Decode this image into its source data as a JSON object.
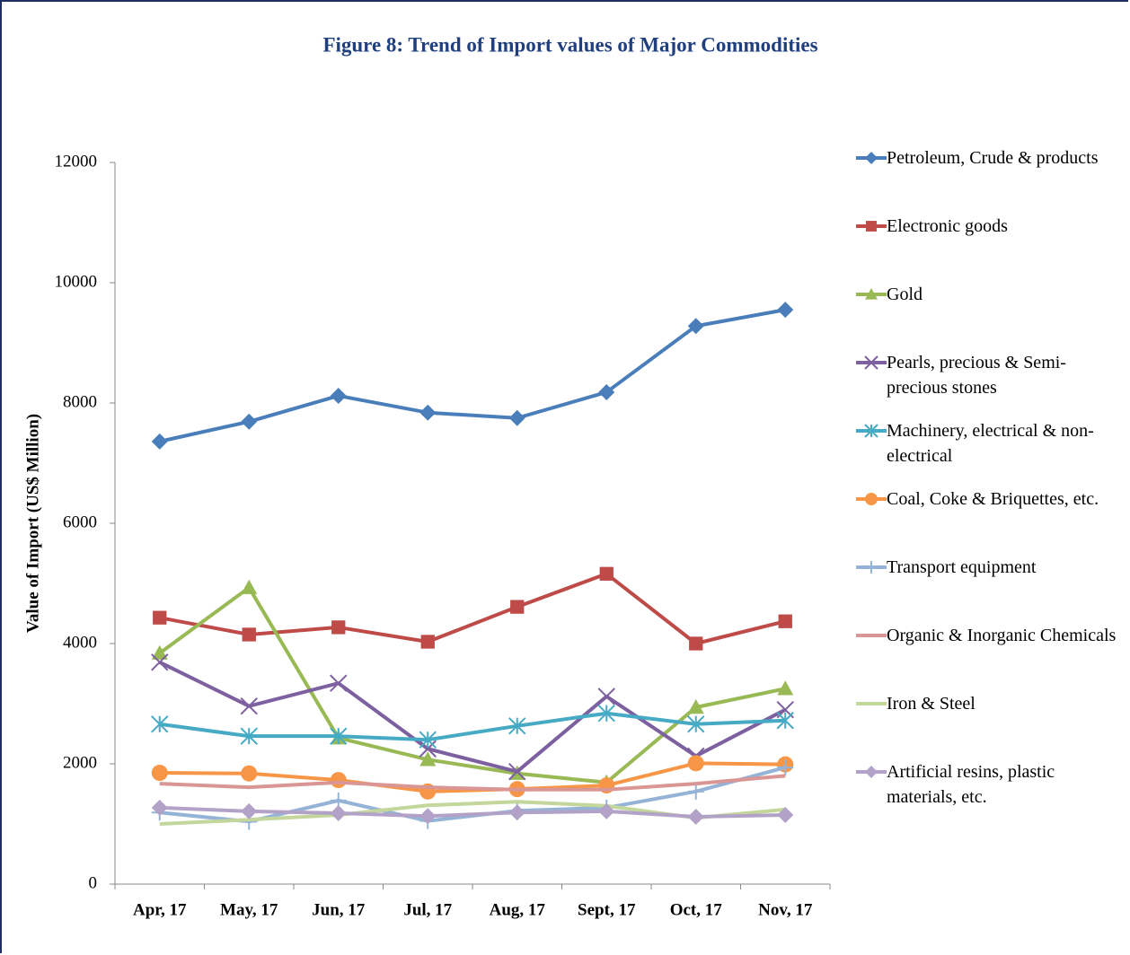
{
  "chart_data": {
    "type": "line",
    "title": "Figure 8: Trend of Import values of Major Commodities",
    "y_label": "Value of Import  (US$ Million)",
    "categories": [
      "Apr, 17",
      "May, 17",
      "Jun, 17",
      "Jul, 17",
      "Aug, 17",
      "Sept, 17",
      "Oct, 17",
      "Nov, 17"
    ],
    "ylim": [
      0,
      12000
    ],
    "yticks": [
      0,
      2000,
      4000,
      6000,
      8000,
      10000,
      12000
    ],
    "legend": "right",
    "series": [
      {
        "name": "Petroleum, Crude & products",
        "color": "#4a7ebb",
        "marker": "diamond",
        "values": [
          7360,
          7690,
          8120,
          7840,
          7750,
          8180,
          9280,
          9550
        ]
      },
      {
        "name": "Electronic goods",
        "color": "#be4b48",
        "marker": "square",
        "values": [
          4430,
          4150,
          4270,
          4030,
          4610,
          5160,
          4000,
          4370
        ]
      },
      {
        "name": "Gold",
        "color": "#98b954",
        "marker": "triangle",
        "values": [
          3840,
          4930,
          2430,
          2070,
          1840,
          1690,
          2940,
          3250
        ]
      },
      {
        "name": "Pearls, precious & Semi-precious stones",
        "color": "#7d60a0",
        "marker": "x",
        "values": [
          3690,
          2960,
          3340,
          2250,
          1870,
          3120,
          2130,
          2900
        ]
      },
      {
        "name": "Machinery, electrical & non-electrical",
        "color": "#46aac5",
        "marker": "asterisk",
        "values": [
          2660,
          2460,
          2460,
          2400,
          2630,
          2840,
          2660,
          2720
        ]
      },
      {
        "name": "Coal, Coke & Briquettes, etc.",
        "color": "#f79646",
        "marker": "circle",
        "values": [
          1850,
          1840,
          1730,
          1540,
          1580,
          1640,
          2010,
          1990
        ]
      },
      {
        "name": "Transport equipment",
        "color": "#95b3d7",
        "marker": "plus",
        "values": [
          1190,
          1040,
          1390,
          1050,
          1220,
          1270,
          1540,
          1940
        ]
      },
      {
        "name": "Organic & Inorganic Chemicals",
        "color": "#d99694",
        "marker": "none",
        "values": [
          1670,
          1610,
          1690,
          1610,
          1570,
          1570,
          1670,
          1800
        ]
      },
      {
        "name": "Iron & Steel",
        "color": "#c3d69b",
        "marker": "none",
        "values": [
          1000,
          1070,
          1150,
          1310,
          1370,
          1300,
          1100,
          1240
        ]
      },
      {
        "name": "Artificial resins, plastic materials, etc.",
        "color": "#b3a2c7",
        "marker": "diamond",
        "values": [
          1270,
          1210,
          1180,
          1130,
          1190,
          1210,
          1120,
          1150
        ]
      }
    ]
  }
}
